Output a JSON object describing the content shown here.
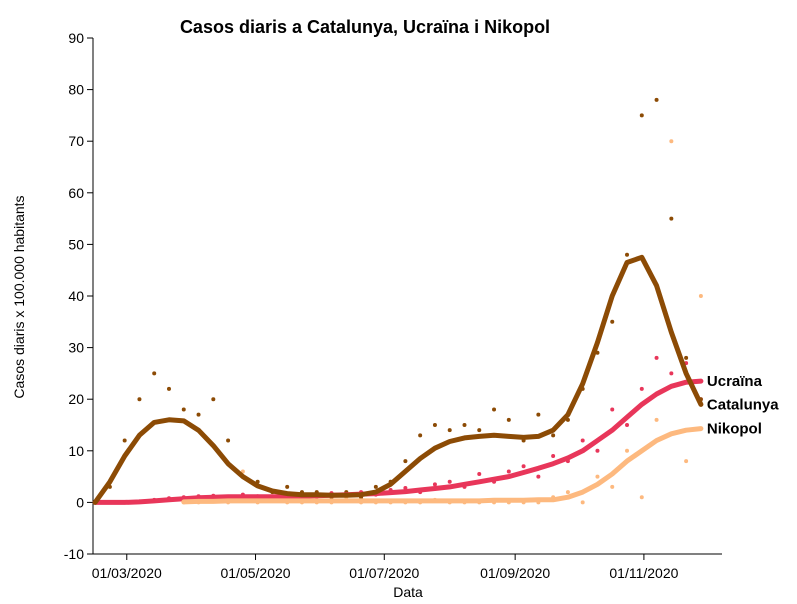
{
  "chart_data": {
    "type": "scatter-trend",
    "title": "Casos diaris a Catalunya, Ucraïna i Nikopol",
    "xlabel": "Data",
    "ylabel": "Casos diaris x 100.000 habitants",
    "xlim": [
      "2020-02-14",
      "2020-12-08"
    ],
    "xticks": [
      {
        "value": "2020-03-01",
        "label": "01/03/2020"
      },
      {
        "value": "2020-05-01",
        "label": "01/05/2020"
      },
      {
        "value": "2020-07-01",
        "label": "01/07/2020"
      },
      {
        "value": "2020-09-01",
        "label": "01/09/2020"
      },
      {
        "value": "2020-11-01",
        "label": "01/11/2020"
      }
    ],
    "ylim": [
      -10,
      90
    ],
    "yticks": [
      -10,
      0,
      10,
      20,
      30,
      40,
      50,
      60,
      70,
      80,
      90
    ],
    "x": [
      "2020-02-15",
      "2020-02-22",
      "2020-02-29",
      "2020-03-07",
      "2020-03-14",
      "2020-03-21",
      "2020-03-28",
      "2020-04-04",
      "2020-04-11",
      "2020-04-18",
      "2020-04-25",
      "2020-05-02",
      "2020-05-09",
      "2020-05-16",
      "2020-05-23",
      "2020-05-30",
      "2020-06-06",
      "2020-06-13",
      "2020-06-20",
      "2020-06-27",
      "2020-07-04",
      "2020-07-11",
      "2020-07-18",
      "2020-07-25",
      "2020-08-01",
      "2020-08-08",
      "2020-08-15",
      "2020-08-22",
      "2020-08-29",
      "2020-09-05",
      "2020-09-12",
      "2020-09-19",
      "2020-09-26",
      "2020-10-03",
      "2020-10-10",
      "2020-10-17",
      "2020-10-24",
      "2020-10-31",
      "2020-11-07",
      "2020-11-14",
      "2020-11-21",
      "2020-11-28"
    ],
    "series": [
      {
        "name": "Ucraïna",
        "color": "#e8365a",
        "trend": [
          0,
          0,
          0,
          0.1,
          0.3,
          0.5,
          0.7,
          0.9,
          1,
          1.1,
          1.1,
          1.1,
          1.1,
          1.1,
          1.2,
          1.3,
          1.4,
          1.5,
          1.6,
          1.7,
          1.9,
          2.1,
          2.4,
          2.7,
          3,
          3.5,
          4,
          4.5,
          5,
          5.8,
          6.6,
          7.5,
          8.6,
          10,
          12,
          14,
          16.5,
          19,
          21,
          22.5,
          23.3,
          23.5
        ],
        "points": [
          0,
          0,
          0,
          0.2,
          0.5,
          0.8,
          1,
          1.2,
          1.3,
          0.8,
          1.5,
          1.2,
          0.9,
          1.4,
          1.5,
          1.1,
          1.8,
          1.6,
          2,
          1.5,
          2.4,
          2.8,
          2,
          3.5,
          4,
          3,
          5.5,
          4,
          6,
          7,
          5,
          9,
          8,
          12,
          10,
          18,
          15,
          22,
          28,
          25,
          27,
          20
        ]
      },
      {
        "name": "Nikopol",
        "color": "#fdb97f",
        "trend": [
          null,
          null,
          null,
          null,
          null,
          null,
          0.1,
          0.2,
          0.2,
          0.3,
          0.3,
          0.3,
          0.3,
          0.3,
          0.3,
          0.3,
          0.3,
          0.3,
          0.3,
          0.3,
          0.3,
          0.3,
          0.3,
          0.3,
          0.3,
          0.3,
          0.3,
          0.4,
          0.4,
          0.4,
          0.5,
          0.5,
          1,
          2,
          3.5,
          5.5,
          8,
          10,
          12,
          13.3,
          14,
          14.3
        ],
        "points": [
          null,
          null,
          null,
          null,
          null,
          null,
          0,
          0,
          0.5,
          0,
          6,
          0,
          0.5,
          0,
          0,
          0,
          0,
          1,
          0,
          0,
          0,
          0,
          0,
          0.5,
          0,
          0,
          0,
          0,
          0,
          0,
          0,
          1,
          2,
          0,
          5,
          3,
          10,
          1,
          16,
          70,
          8,
          40
        ]
      },
      {
        "name": "Catalunya",
        "color": "#8c4b05",
        "trend": [
          0,
          4,
          9,
          13,
          15.5,
          16,
          15.8,
          14,
          11,
          7.5,
          5,
          3.2,
          2.2,
          1.7,
          1.5,
          1.5,
          1.4,
          1.4,
          1.5,
          2,
          3.5,
          6,
          8.5,
          10.5,
          11.8,
          12.5,
          12.8,
          13,
          12.8,
          12.6,
          12.8,
          14,
          17,
          23,
          31,
          40,
          46.5,
          47.5,
          42,
          33,
          25,
          19
        ],
        "points": [
          0,
          3,
          12,
          20,
          25,
          22,
          18,
          17,
          20,
          12,
          5,
          4,
          2,
          3,
          2,
          2,
          1,
          2,
          1,
          3,
          4,
          8,
          13,
          15,
          14,
          15,
          14,
          18,
          16,
          12,
          17,
          13,
          16,
          22,
          29,
          35,
          48,
          75,
          78,
          55,
          28,
          20
        ]
      }
    ]
  }
}
